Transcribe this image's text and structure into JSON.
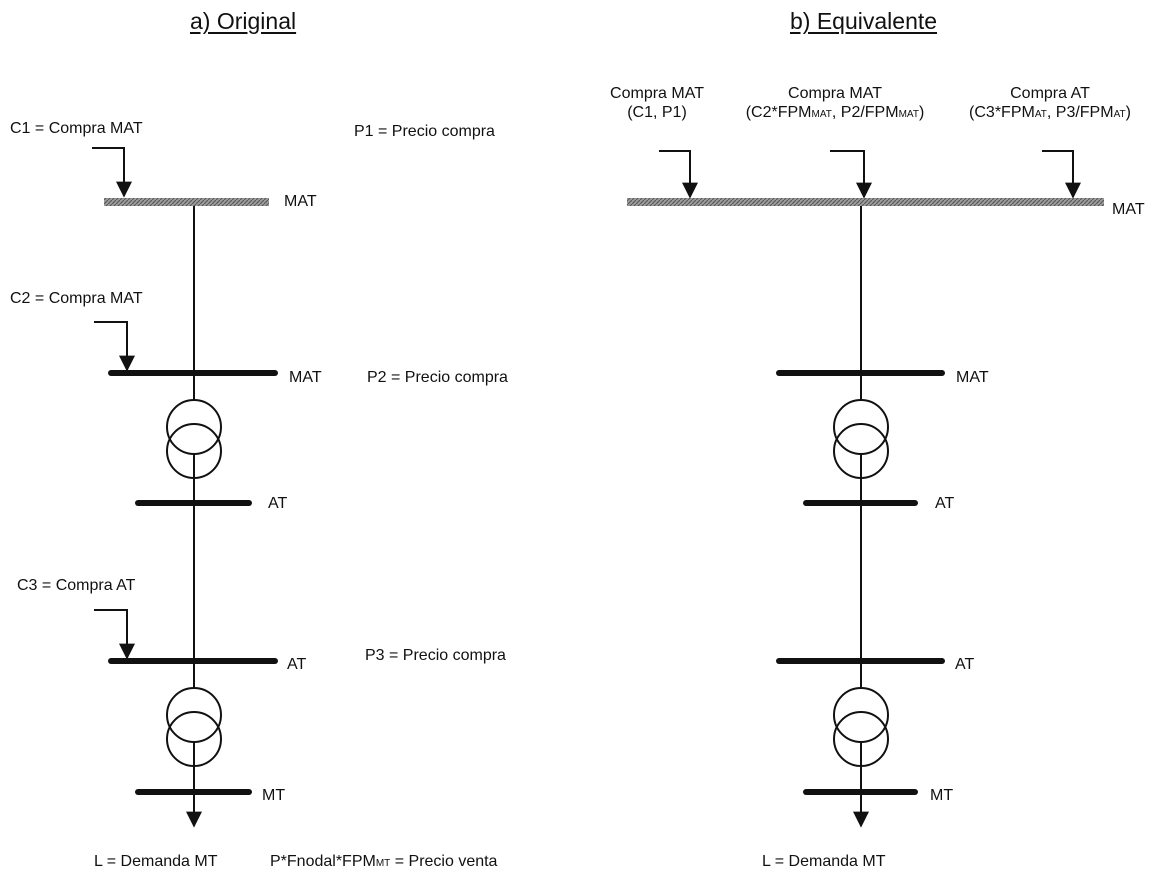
{
  "left": {
    "title": "a) Original",
    "c1": "C1 = Compra MAT",
    "p1": "P1 = Precio compra",
    "bus1": "MAT",
    "c2": "C2 = Compra MAT",
    "bus2": "MAT",
    "p2": "P2 = Precio compra",
    "bus3": "AT",
    "c3": "C3 = Compra AT",
    "bus4": "AT",
    "p3": "P3 = Precio compra",
    "bus5": "MT",
    "load": "L = Demanda MT",
    "sale_a": "P*Fnodal*FPM",
    "sale_sub": "MT",
    "sale_b": " = Precio venta"
  },
  "right": {
    "title": "b) Equivalente",
    "in1_l1": "Compra MAT",
    "in1_l2": "(C1, P1)",
    "in2_l1": "Compra MAT",
    "in2_a": "(C2*FPM",
    "in2_s1": "MAT",
    "in2_b": ", P2/FPM",
    "in2_s2": "MAT",
    "in2_c": ")",
    "in3_l1": "Compra AT",
    "in3_a": "(C3*FPM",
    "in3_s1": "AT",
    "in3_b": ", P3/FPM",
    "in3_s2": "AT",
    "in3_c": ")",
    "bus1": "MAT",
    "bus2": "MAT",
    "bus3": "AT",
    "bus4": "AT",
    "bus5": "MT",
    "load": "L = Demanda MT"
  },
  "colors": {
    "line": "#111111",
    "bus_hatched": "#8c8c8c"
  }
}
